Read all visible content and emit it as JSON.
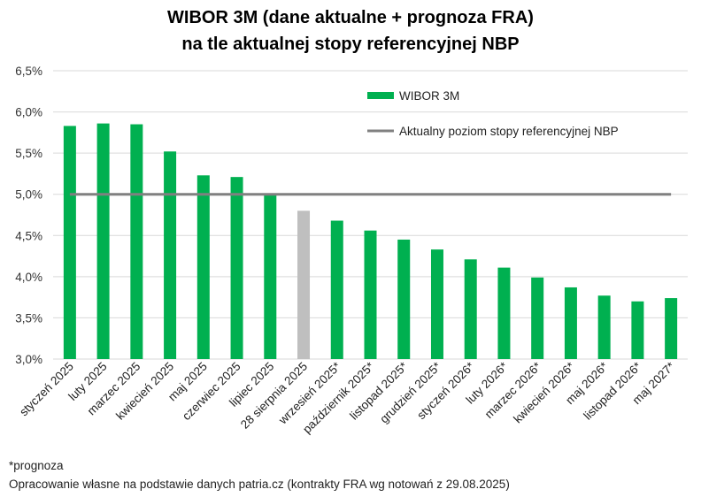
{
  "chart_data": {
    "type": "bar",
    "title": "WIBOR 3M (dane aktualne + prognoza FRA)",
    "subtitle": "na tle aktualnej stopy referencyjnej NBP",
    "categories": [
      "styczeń 2025",
      "luty 2025",
      "marzec 2025",
      "kwiecień 2025",
      "maj 2025",
      "czerwiec 2025",
      "lipiec 2025",
      "28 sierpnia 2025",
      "wrzesień 2025*",
      "październik 2025*",
      "listopad 2025*",
      "grudzień 2025*",
      "styczeń 2026*",
      "luty 2026*",
      "marzec 2026*",
      "kwiecień 2026*",
      "maj 2026*",
      "listopad 2026*",
      "maj 2027*"
    ],
    "series": [
      {
        "name": "WIBOR 3M",
        "type": "bar",
        "color": "#00B050",
        "highlight_color": "#BFBFBF",
        "highlight_index": 7,
        "values": [
          5.83,
          5.86,
          5.85,
          5.52,
          5.23,
          5.21,
          4.99,
          4.8,
          4.68,
          4.56,
          4.45,
          4.33,
          4.21,
          4.11,
          3.99,
          3.87,
          3.77,
          3.7,
          3.74
        ]
      },
      {
        "name": "Aktualny poziom stopy referencyjnej NBP",
        "type": "line",
        "color": "#808080",
        "values": [
          5.0,
          5.0,
          5.0,
          5.0,
          5.0,
          5.0,
          5.0,
          5.0,
          5.0,
          5.0,
          5.0,
          5.0,
          5.0,
          5.0,
          5.0,
          5.0,
          5.0,
          5.0,
          5.0
        ]
      }
    ],
    "ylim": [
      3.0,
      6.5
    ],
    "yticks": [
      "3,0%",
      "3,5%",
      "4,0%",
      "4,5%",
      "5,0%",
      "5,5%",
      "6,0%",
      "6,5%"
    ],
    "grid": true,
    "legend_position": "top-right"
  },
  "footnote": "*prognoza",
  "source": "Opracowanie własne na podstawie danych patria.cz (kontrakty FRA wg notowań z 29.08.2025)"
}
